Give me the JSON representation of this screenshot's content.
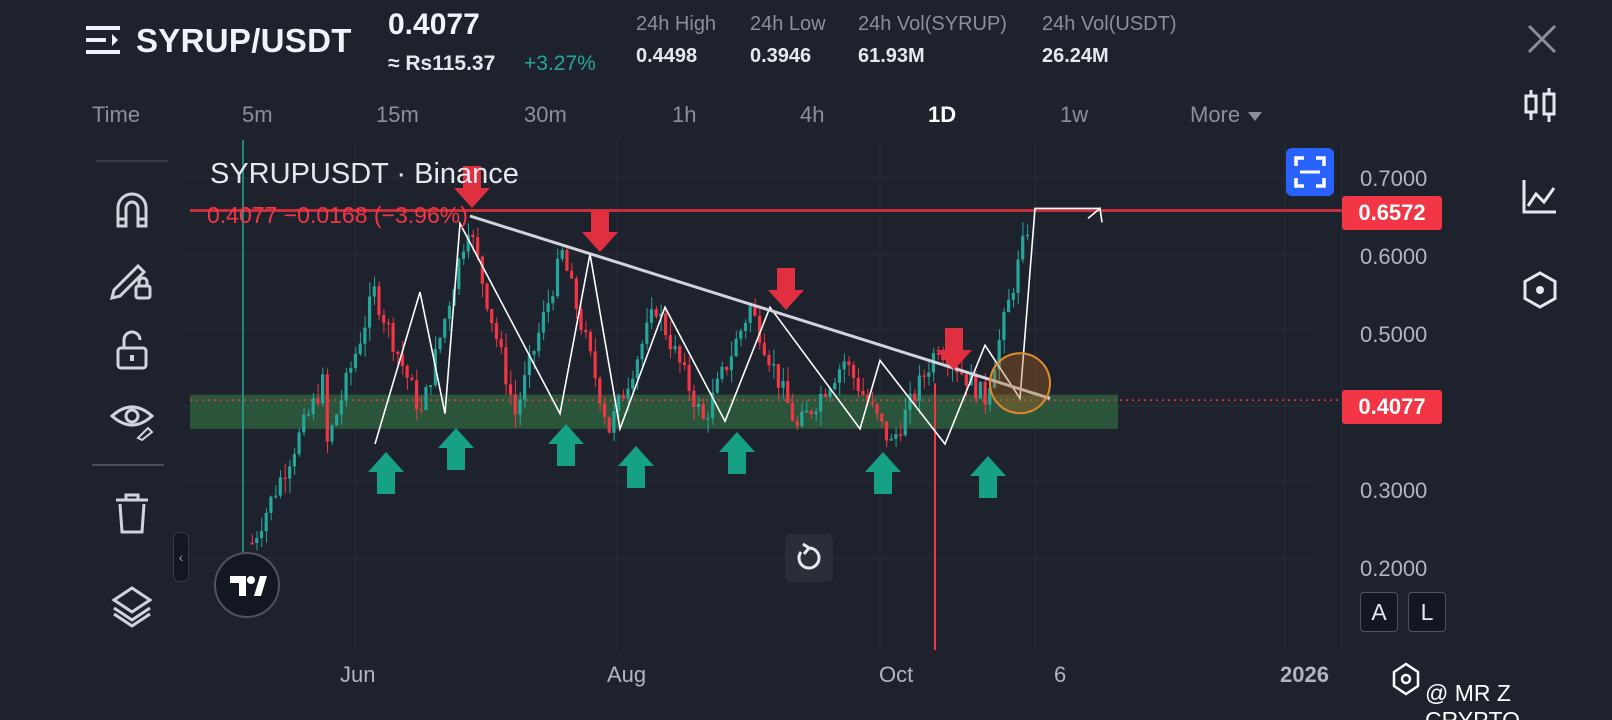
{
  "header": {
    "pair": "SYRUP/USDT",
    "last_price": "0.4077",
    "approx_local": "≈ Rs115.37",
    "change_pct": "+3.27%",
    "stats": [
      {
        "label": "24h High",
        "value": "0.4498"
      },
      {
        "label": "24h Low",
        "value": "0.3946"
      },
      {
        "label": "24h Vol(SYRUP)",
        "value": "61.93M"
      },
      {
        "label": "24h Vol(USDT)",
        "value": "26.24M"
      }
    ]
  },
  "timeframes": {
    "items": [
      "Time",
      "5m",
      "15m",
      "30m",
      "1h",
      "4h",
      "1D",
      "1w"
    ],
    "active": "1D",
    "more_label": "More"
  },
  "chart": {
    "symbol_title": "SYRUPUSDT · Binance",
    "ohlc_line": "0.4077  −0.0168 (−3.96%)",
    "y_ticks": [
      "0.7000",
      "0.6000",
      "0.5000",
      "0.3000",
      "0.2000"
    ],
    "x_ticks": [
      "Jun",
      "Aug",
      "Oct",
      "6",
      "2026"
    ],
    "resistance_tag": "0.6572",
    "last_tag": "0.4077",
    "scale_auto": "A",
    "scale_log": "L",
    "watermark": "@ MR Z CRYPTO"
  },
  "colors": {
    "background": "#1e222d",
    "up": "#26a69a",
    "down": "#f23645",
    "accent": "#2962ff",
    "support_zone": "#2e5e3e"
  },
  "icons": {
    "left_toolbar": [
      "magnet-icon",
      "pencil-lock-icon",
      "unlock-icon",
      "eye-icon",
      "trash-icon",
      "layers-icon"
    ],
    "right_toolbar": [
      "candles-icon",
      "indicator-chart-icon",
      "hexagon-settings-icon"
    ]
  },
  "chart_data": {
    "type": "candlestick",
    "x_axis_ticks": [
      "Jun",
      "Aug",
      "Oct",
      "6",
      "2026"
    ],
    "y_axis_ticks": [
      0.7,
      0.6,
      0.5,
      0.3,
      0.2
    ],
    "ylim": [
      0.2,
      0.7
    ],
    "last_price": 0.4077,
    "resistance_level": 0.6572,
    "support_zone": [
      0.37,
      0.415
    ],
    "descending_trendline": [
      [
        0.65,
        0.41
      ]
    ],
    "zigzag_pivots": [
      0.35,
      0.55,
      0.39,
      0.64,
      0.39,
      0.6,
      0.37,
      0.53,
      0.38,
      0.53,
      0.37,
      0.46,
      0.35,
      0.48,
      0.41,
      0.66
    ],
    "down_arrows": 4,
    "up_arrows": 7
  }
}
